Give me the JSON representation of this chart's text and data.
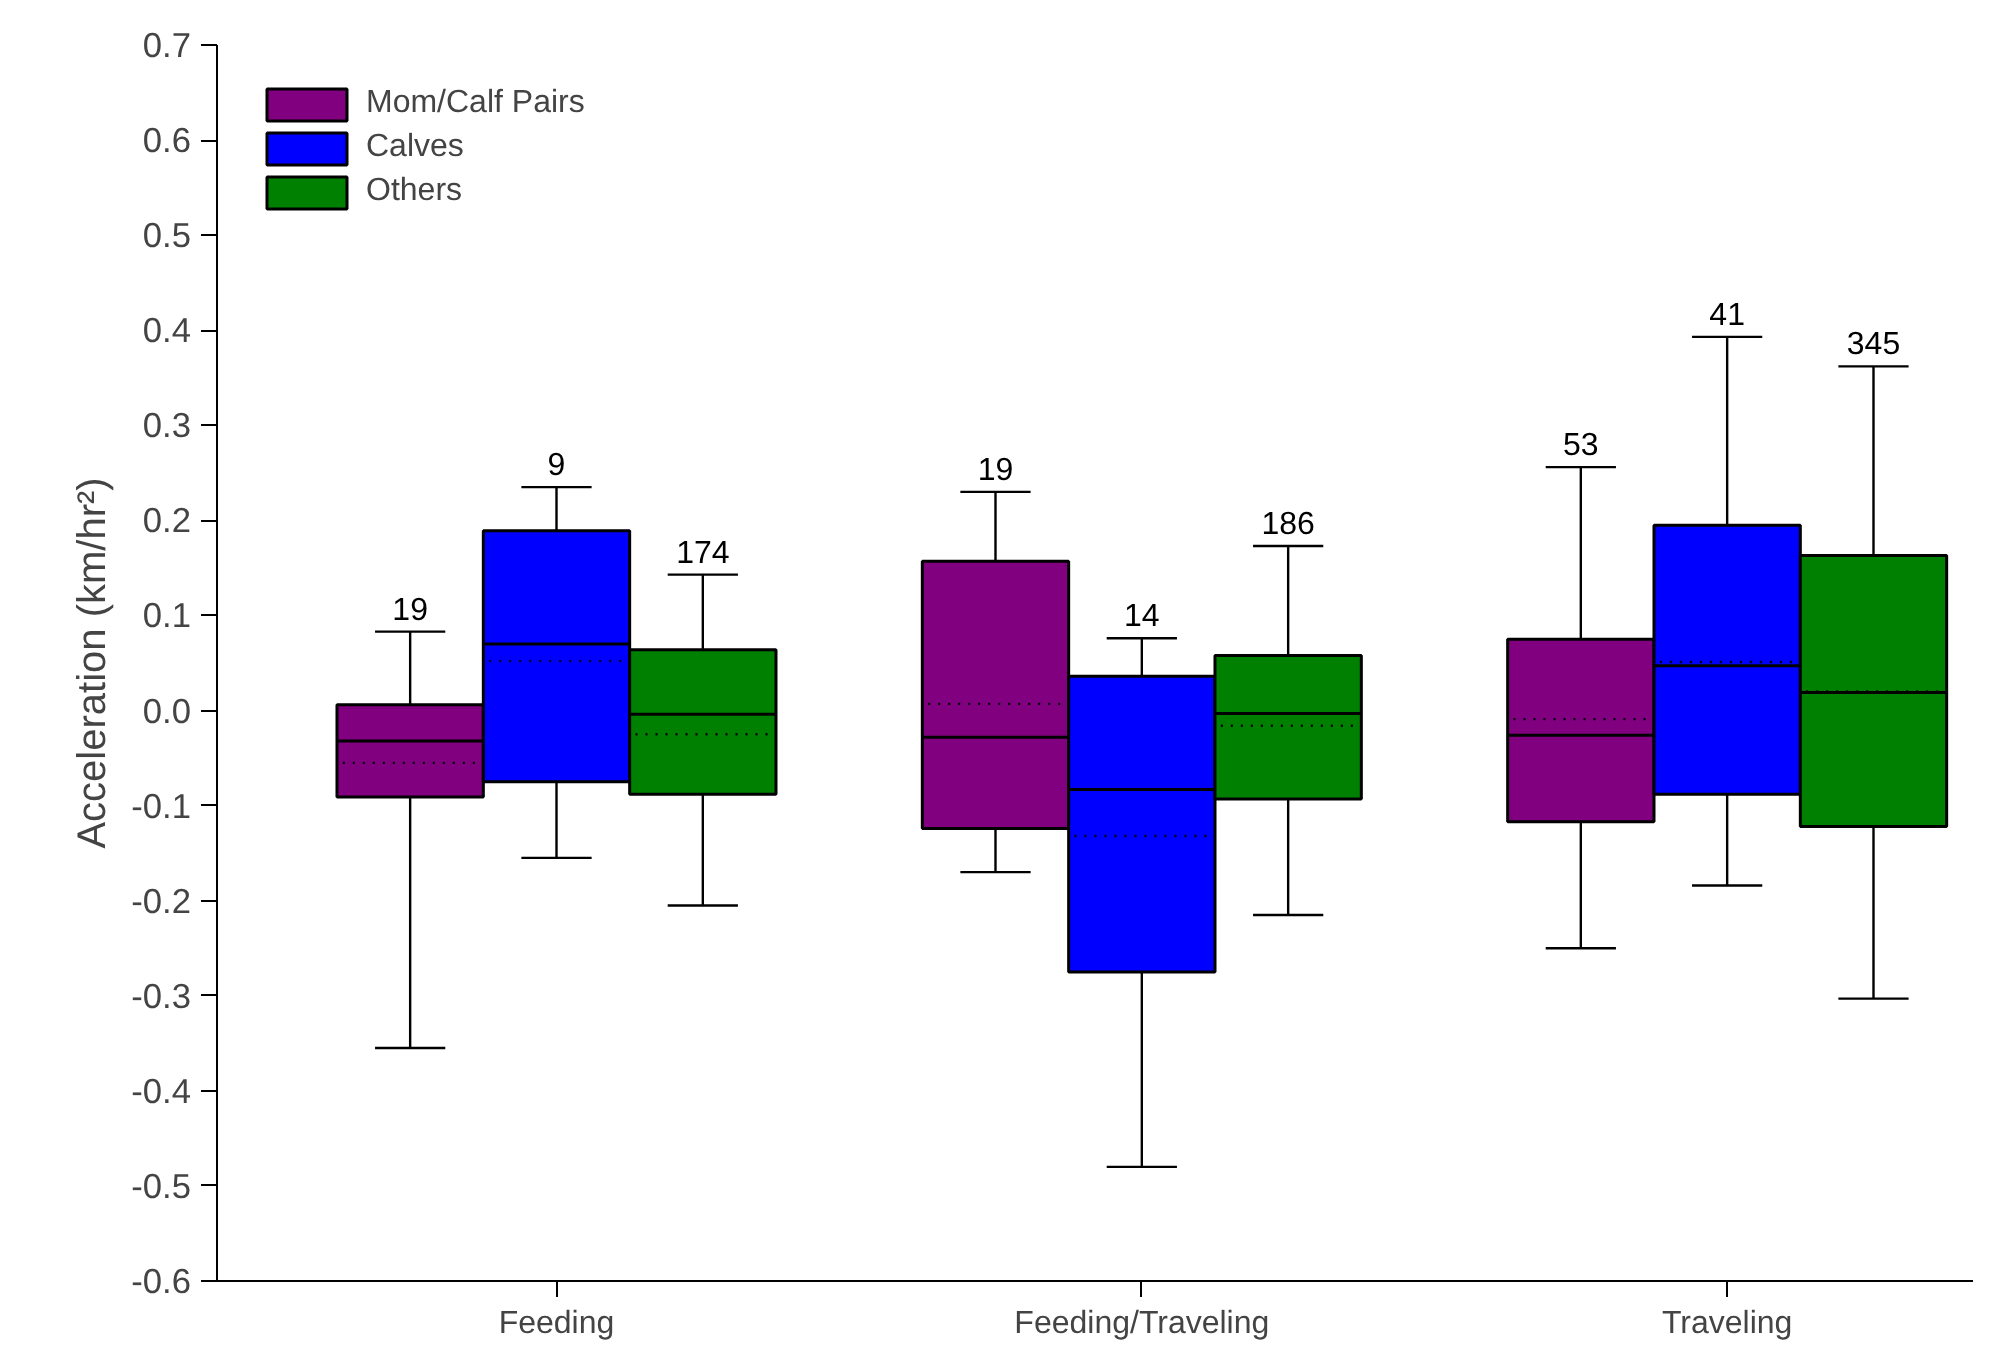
{
  "chart_data": {
    "type": "box",
    "ylabel": "Acceleration (km/hr²)",
    "categories": [
      "Feeding",
      "Feeding/Traveling",
      "Traveling"
    ],
    "ylim": [
      -0.6,
      0.7
    ],
    "yticks": [
      -0.6,
      -0.5,
      -0.4,
      -0.3,
      -0.2,
      -0.1,
      {
        "value": 0,
        "label": "0.0"
      },
      0.1,
      0.2,
      0.3,
      0.4,
      0.5,
      0.6,
      0.7
    ],
    "grid": false,
    "legend": "top left",
    "series": [
      {
        "name": "Mom/Calf Pairs",
        "color": "#800080",
        "value_labels": [
          "19",
          "19",
          "53"
        ],
        "boxes": [
          {
            "low": -0.355,
            "q1": -0.091,
            "median": -0.032,
            "q3": 0.006,
            "high": 0.083,
            "mean": -0.055
          },
          {
            "low": -0.17,
            "q1": -0.124,
            "median": -0.028,
            "q3": 0.157,
            "high": 0.23,
            "mean": 0.007
          },
          {
            "low": -0.25,
            "q1": -0.117,
            "median": -0.026,
            "q3": 0.075,
            "high": 0.256,
            "mean": -0.009
          }
        ]
      },
      {
        "name": "Calves",
        "color": "#0000ff",
        "value_labels": [
          "9",
          "14",
          "41"
        ],
        "boxes": [
          {
            "low": -0.155,
            "q1": -0.075,
            "median": 0.07,
            "q3": 0.189,
            "high": 0.235,
            "mean": 0.052
          },
          {
            "low": -0.48,
            "q1": -0.275,
            "median": -0.083,
            "q3": 0.036,
            "high": 0.076,
            "mean": -0.132
          },
          {
            "low": -0.184,
            "q1": -0.088,
            "median": 0.047,
            "q3": 0.195,
            "high": 0.393,
            "mean": 0.051
          }
        ]
      },
      {
        "name": "Others",
        "color": "#008000",
        "value_labels": [
          "174",
          "186",
          "345"
        ],
        "boxes": [
          {
            "low": -0.205,
            "q1": -0.088,
            "median": -0.004,
            "q3": 0.064,
            "high": 0.143,
            "mean": -0.025
          },
          {
            "low": -0.215,
            "q1": -0.093,
            "median": -0.003,
            "q3": 0.058,
            "high": 0.173,
            "mean": -0.016
          },
          {
            "low": -0.303,
            "q1": -0.122,
            "median": 0.019,
            "q3": 0.163,
            "high": 0.362,
            "mean": 0.02
          }
        ]
      }
    ]
  }
}
